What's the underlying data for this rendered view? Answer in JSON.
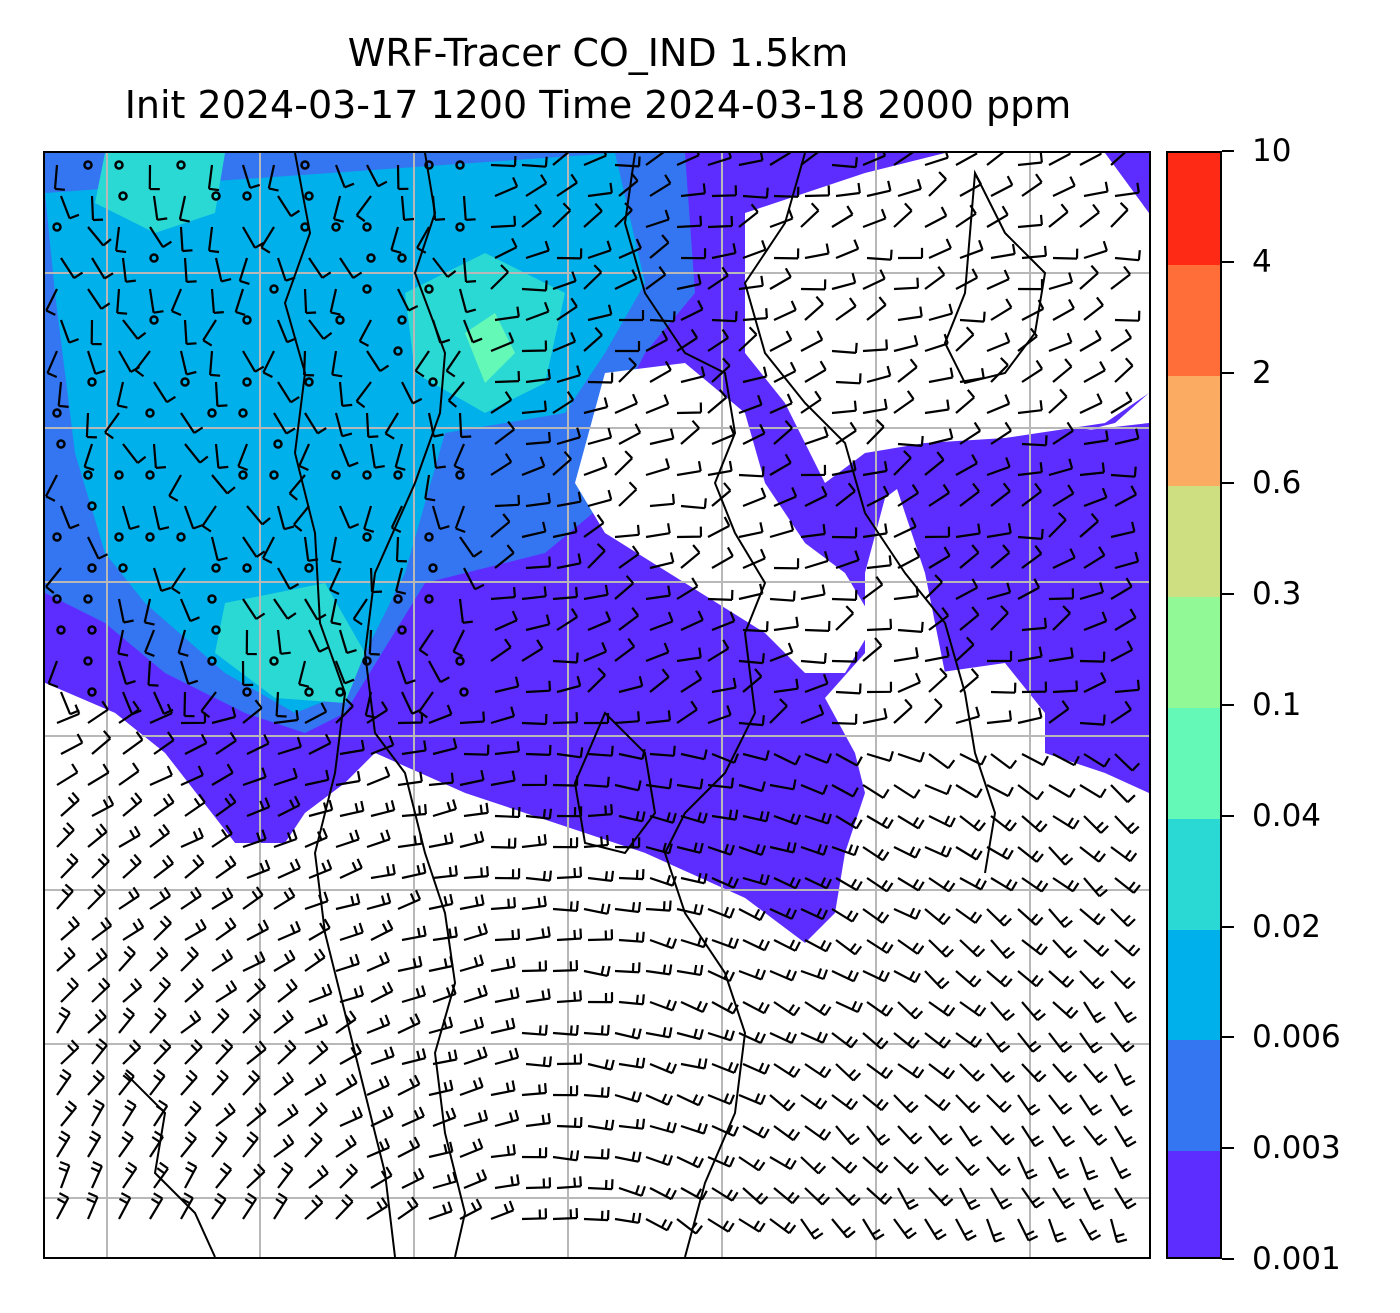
{
  "title": {
    "line1": "WRF-Tracer CO_IND 1.5km",
    "line2": "Init 2024-03-17 1200 Time 2024-03-18 2000 ppm"
  },
  "colorbar": {
    "levels": [
      "0.001",
      "0.003",
      "0.006",
      "0.02",
      "0.04",
      "0.1",
      "0.3",
      "0.6",
      "2",
      "4",
      "10"
    ],
    "colors": [
      "#5d2cff",
      "#3476f1",
      "#00b0ea",
      "#2ad8d4",
      "#65f9b8",
      "#91f996",
      "#cedf82",
      "#fcac62",
      "#ff6e38",
      "#ff2a15"
    ]
  },
  "map": {
    "field": "CO_IND tracer concentration",
    "units": "ppm",
    "overlay": "wind barbs",
    "coastline_color": "#000000",
    "gridline_color": "#b8b8b8"
  }
}
